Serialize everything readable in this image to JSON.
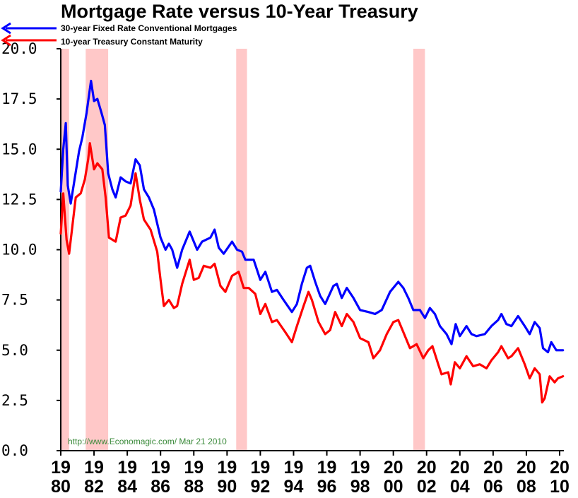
{
  "chart_data": {
    "type": "line",
    "title": "Mortgage Rate versus 10-Year Treasury",
    "source_text": "http://www.Economagic.com/   Mar 21 2010",
    "xlim": [
      1980,
      2010.3
    ],
    "ylim": [
      0,
      20
    ],
    "y_ticks": [
      "0.0",
      "2.5",
      "5.0",
      "7.5",
      "10.0",
      "12.5",
      "15.0",
      "17.5",
      "20.0"
    ],
    "x_ticks": [
      {
        "year": 1980,
        "top": "19",
        "bottom": "80"
      },
      {
        "year": 1982,
        "top": "19",
        "bottom": "82"
      },
      {
        "year": 1984,
        "top": "19",
        "bottom": "84"
      },
      {
        "year": 1986,
        "top": "19",
        "bottom": "86"
      },
      {
        "year": 1988,
        "top": "19",
        "bottom": "88"
      },
      {
        "year": 1990,
        "top": "19",
        "bottom": "90"
      },
      {
        "year": 1992,
        "top": "19",
        "bottom": "92"
      },
      {
        "year": 1994,
        "top": "19",
        "bottom": "94"
      },
      {
        "year": 1996,
        "top": "19",
        "bottom": "96"
      },
      {
        "year": 1998,
        "top": "19",
        "bottom": "98"
      },
      {
        "year": 2000,
        "top": "20",
        "bottom": "00"
      },
      {
        "year": 2002,
        "top": "20",
        "bottom": "02"
      },
      {
        "year": 2004,
        "top": "20",
        "bottom": "04"
      },
      {
        "year": 2006,
        "top": "20",
        "bottom": "06"
      },
      {
        "year": 2008,
        "top": "20",
        "bottom": "08"
      },
      {
        "year": 2010,
        "top": "20",
        "bottom": "10"
      }
    ],
    "recessions": [
      {
        "start": 1980.0,
        "end": 1980.5
      },
      {
        "start": 1981.5,
        "end": 1982.85
      },
      {
        "start": 1990.55,
        "end": 1991.2
      },
      {
        "start": 2001.2,
        "end": 2001.9
      }
    ],
    "recession_color": "#ffc8c8",
    "series": [
      {
        "name": "30-year Fixed Rate Conventional Mortgages",
        "color": "#0000ff",
        "points": [
          [
            1980.0,
            12.9
          ],
          [
            1980.15,
            15.0
          ],
          [
            1980.3,
            16.3
          ],
          [
            1980.42,
            13.2
          ],
          [
            1980.6,
            12.3
          ],
          [
            1980.85,
            13.6
          ],
          [
            1981.1,
            14.9
          ],
          [
            1981.3,
            15.6
          ],
          [
            1981.55,
            16.8
          ],
          [
            1981.75,
            18.0
          ],
          [
            1981.82,
            18.4
          ],
          [
            1982.0,
            17.4
          ],
          [
            1982.2,
            17.5
          ],
          [
            1982.45,
            16.8
          ],
          [
            1982.65,
            16.2
          ],
          [
            1982.85,
            13.8
          ],
          [
            1983.1,
            13.0
          ],
          [
            1983.3,
            12.6
          ],
          [
            1983.6,
            13.6
          ],
          [
            1983.9,
            13.4
          ],
          [
            1984.2,
            13.3
          ],
          [
            1984.5,
            14.5
          ],
          [
            1984.75,
            14.2
          ],
          [
            1985.0,
            13.0
          ],
          [
            1985.3,
            12.6
          ],
          [
            1985.6,
            12.0
          ],
          [
            1986.0,
            10.6
          ],
          [
            1986.3,
            10.0
          ],
          [
            1986.5,
            10.3
          ],
          [
            1986.7,
            10.0
          ],
          [
            1987.0,
            9.1
          ],
          [
            1987.3,
            10.0
          ],
          [
            1987.75,
            10.9
          ],
          [
            1988.0,
            10.4
          ],
          [
            1988.2,
            10.0
          ],
          [
            1988.5,
            10.4
          ],
          [
            1989.0,
            10.6
          ],
          [
            1989.25,
            11.0
          ],
          [
            1989.5,
            10.1
          ],
          [
            1989.8,
            9.8
          ],
          [
            1990.3,
            10.4
          ],
          [
            1990.6,
            10.0
          ],
          [
            1990.9,
            9.9
          ],
          [
            1991.1,
            9.5
          ],
          [
            1991.6,
            9.5
          ],
          [
            1992.0,
            8.5
          ],
          [
            1992.3,
            8.9
          ],
          [
            1992.7,
            7.9
          ],
          [
            1993.0,
            8.0
          ],
          [
            1993.4,
            7.5
          ],
          [
            1993.9,
            6.9
          ],
          [
            1994.2,
            7.3
          ],
          [
            1994.5,
            8.3
          ],
          [
            1994.8,
            9.1
          ],
          [
            1995.0,
            9.2
          ],
          [
            1995.3,
            8.4
          ],
          [
            1995.6,
            7.7
          ],
          [
            1995.9,
            7.3
          ],
          [
            1996.4,
            8.2
          ],
          [
            1996.6,
            8.3
          ],
          [
            1996.9,
            7.6
          ],
          [
            1997.2,
            8.1
          ],
          [
            1997.6,
            7.6
          ],
          [
            1998.0,
            7.0
          ],
          [
            1998.5,
            6.9
          ],
          [
            1998.9,
            6.8
          ],
          [
            1999.3,
            7.0
          ],
          [
            1999.8,
            7.9
          ],
          [
            2000.3,
            8.4
          ],
          [
            2000.6,
            8.1
          ],
          [
            2000.9,
            7.6
          ],
          [
            2001.2,
            7.0
          ],
          [
            2001.6,
            7.0
          ],
          [
            2001.9,
            6.6
          ],
          [
            2002.2,
            7.1
          ],
          [
            2002.5,
            6.8
          ],
          [
            2002.8,
            6.2
          ],
          [
            2003.2,
            5.8
          ],
          [
            2003.5,
            5.3
          ],
          [
            2003.75,
            6.3
          ],
          [
            2004.0,
            5.7
          ],
          [
            2004.4,
            6.2
          ],
          [
            2004.7,
            5.8
          ],
          [
            2005.0,
            5.7
          ],
          [
            2005.5,
            5.8
          ],
          [
            2005.9,
            6.2
          ],
          [
            2006.3,
            6.5
          ],
          [
            2006.5,
            6.8
          ],
          [
            2006.8,
            6.3
          ],
          [
            2007.1,
            6.2
          ],
          [
            2007.5,
            6.7
          ],
          [
            2007.9,
            6.2
          ],
          [
            2008.2,
            5.8
          ],
          [
            2008.5,
            6.4
          ],
          [
            2008.8,
            6.1
          ],
          [
            2009.0,
            5.1
          ],
          [
            2009.3,
            4.9
          ],
          [
            2009.5,
            5.4
          ],
          [
            2009.8,
            5.0
          ],
          [
            2010.0,
            5.0
          ],
          [
            2010.2,
            5.0
          ]
        ]
      },
      {
        "name": "10-year Treasury Constant Maturity",
        "color": "#ff0000",
        "points": [
          [
            1980.0,
            10.8
          ],
          [
            1980.15,
            12.8
          ],
          [
            1980.35,
            10.5
          ],
          [
            1980.5,
            9.8
          ],
          [
            1980.7,
            11.2
          ],
          [
            1980.9,
            12.6
          ],
          [
            1981.2,
            12.8
          ],
          [
            1981.45,
            13.5
          ],
          [
            1981.65,
            14.5
          ],
          [
            1981.75,
            15.3
          ],
          [
            1982.0,
            14.0
          ],
          [
            1982.2,
            14.3
          ],
          [
            1982.5,
            14.0
          ],
          [
            1982.7,
            12.6
          ],
          [
            1982.9,
            10.6
          ],
          [
            1983.3,
            10.4
          ],
          [
            1983.6,
            11.6
          ],
          [
            1983.9,
            11.7
          ],
          [
            1984.2,
            12.2
          ],
          [
            1984.5,
            13.8
          ],
          [
            1984.75,
            12.5
          ],
          [
            1985.0,
            11.5
          ],
          [
            1985.4,
            11.0
          ],
          [
            1985.8,
            9.9
          ],
          [
            1986.0,
            8.5
          ],
          [
            1986.2,
            7.2
          ],
          [
            1986.5,
            7.5
          ],
          [
            1986.8,
            7.1
          ],
          [
            1987.0,
            7.2
          ],
          [
            1987.3,
            8.3
          ],
          [
            1987.75,
            9.5
          ],
          [
            1988.0,
            8.5
          ],
          [
            1988.3,
            8.6
          ],
          [
            1988.6,
            9.2
          ],
          [
            1989.0,
            9.1
          ],
          [
            1989.25,
            9.3
          ],
          [
            1989.6,
            8.2
          ],
          [
            1989.9,
            7.9
          ],
          [
            1990.3,
            8.7
          ],
          [
            1990.7,
            8.9
          ],
          [
            1991.0,
            8.1
          ],
          [
            1991.3,
            8.1
          ],
          [
            1991.7,
            7.8
          ],
          [
            1992.0,
            6.8
          ],
          [
            1992.3,
            7.3
          ],
          [
            1992.7,
            6.4
          ],
          [
            1993.0,
            6.5
          ],
          [
            1993.5,
            5.9
          ],
          [
            1993.9,
            5.4
          ],
          [
            1994.2,
            6.2
          ],
          [
            1994.6,
            7.2
          ],
          [
            1994.9,
            7.9
          ],
          [
            1995.1,
            7.5
          ],
          [
            1995.5,
            6.4
          ],
          [
            1995.9,
            5.8
          ],
          [
            1996.2,
            6.0
          ],
          [
            1996.5,
            6.9
          ],
          [
            1996.9,
            6.2
          ],
          [
            1997.2,
            6.8
          ],
          [
            1997.6,
            6.4
          ],
          [
            1998.0,
            5.6
          ],
          [
            1998.5,
            5.4
          ],
          [
            1998.8,
            4.6
          ],
          [
            1999.2,
            5.0
          ],
          [
            1999.6,
            5.8
          ],
          [
            2000.0,
            6.4
          ],
          [
            2000.3,
            6.5
          ],
          [
            2000.6,
            5.9
          ],
          [
            2001.0,
            5.1
          ],
          [
            2001.4,
            5.3
          ],
          [
            2001.8,
            4.6
          ],
          [
            2002.1,
            5.0
          ],
          [
            2002.35,
            5.2
          ],
          [
            2002.7,
            4.3
          ],
          [
            2002.9,
            3.8
          ],
          [
            2003.3,
            3.9
          ],
          [
            2003.45,
            3.3
          ],
          [
            2003.7,
            4.4
          ],
          [
            2004.0,
            4.1
          ],
          [
            2004.4,
            4.7
          ],
          [
            2004.8,
            4.2
          ],
          [
            2005.2,
            4.3
          ],
          [
            2005.6,
            4.1
          ],
          [
            2005.9,
            4.5
          ],
          [
            2006.3,
            4.9
          ],
          [
            2006.5,
            5.2
          ],
          [
            2006.9,
            4.6
          ],
          [
            2007.1,
            4.7
          ],
          [
            2007.5,
            5.1
          ],
          [
            2007.9,
            4.3
          ],
          [
            2008.2,
            3.6
          ],
          [
            2008.5,
            4.1
          ],
          [
            2008.8,
            3.8
          ],
          [
            2008.95,
            2.4
          ],
          [
            2009.1,
            2.6
          ],
          [
            2009.4,
            3.7
          ],
          [
            2009.7,
            3.4
          ],
          [
            2009.9,
            3.6
          ],
          [
            2010.2,
            3.7
          ]
        ]
      }
    ],
    "legend_position": "top-left",
    "grid": false
  }
}
